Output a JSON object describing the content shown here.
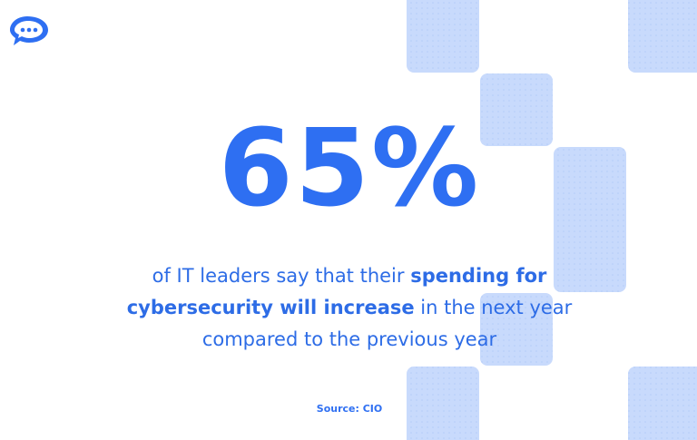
{
  "headline": "65%",
  "description": {
    "lines": [
      [
        {
          "text": "of IT leaders say that their ",
          "bold": false
        },
        {
          "text": "spending for",
          "bold": true
        }
      ],
      [
        {
          "text": "cybersecurity will increase",
          "bold": true
        },
        {
          "text": " in the next year",
          "bold": false
        }
      ],
      [
        {
          "text": "compared to the previous year",
          "bold": false
        }
      ]
    ]
  },
  "source": "Source: CIO"
}
